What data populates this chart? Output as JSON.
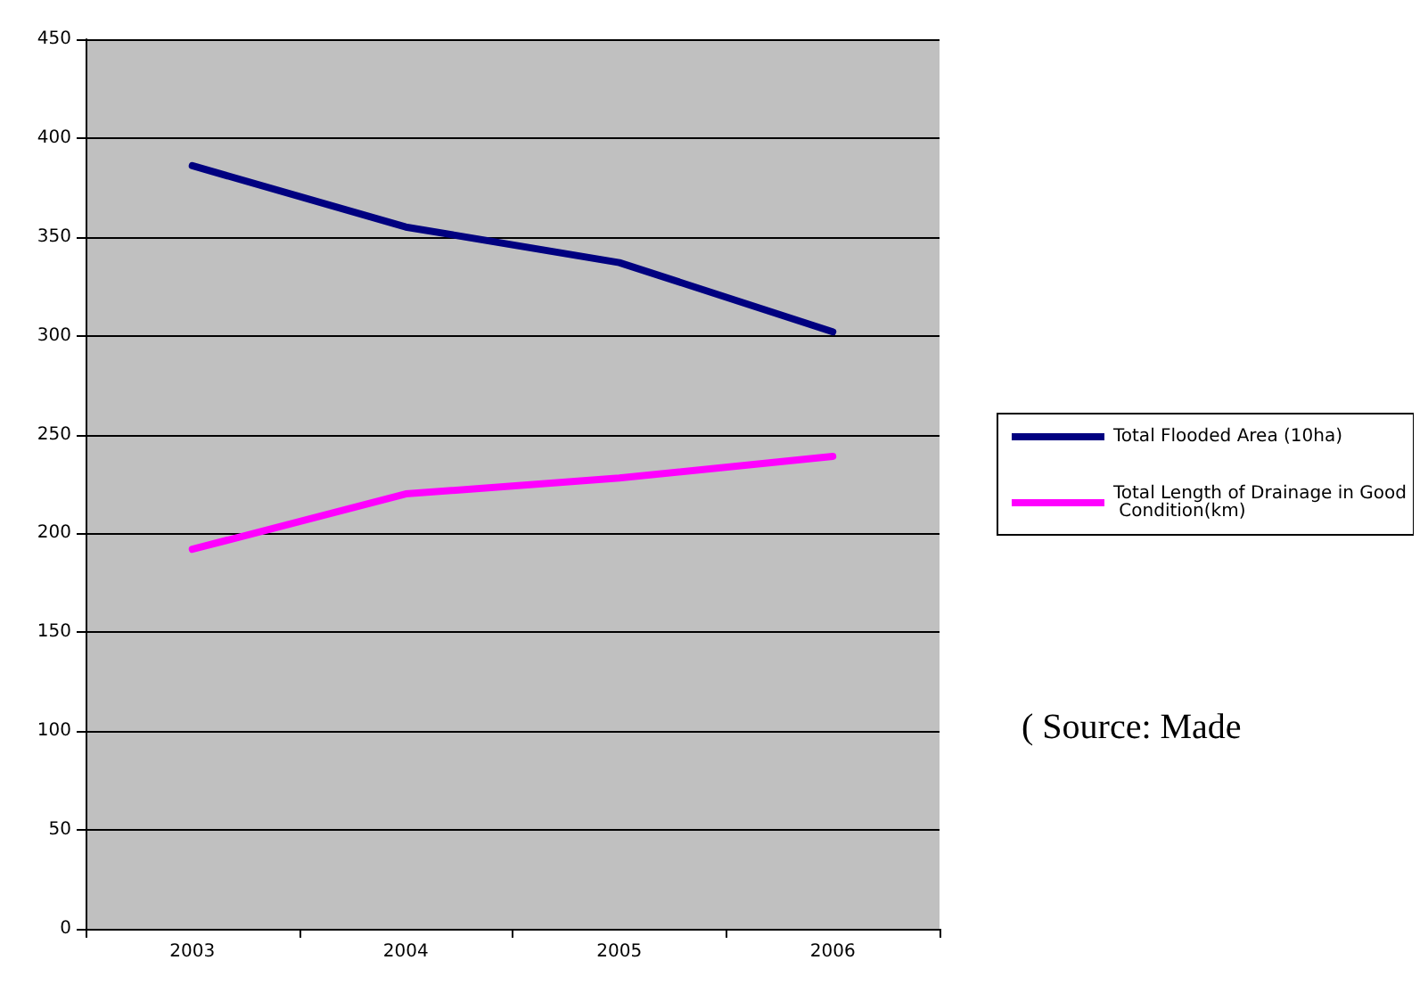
{
  "chart_data": {
    "type": "line",
    "categories": [
      "2003",
      "2004",
      "2005",
      "2006"
    ],
    "series": [
      {
        "name": "Total Flooded Area (10ha)",
        "color": "#000080",
        "values": [
          386,
          355,
          337,
          302
        ]
      },
      {
        "name": "Total Length of Drainage in Good Condition(km)",
        "color": "#ff00ff",
        "values": [
          192,
          220,
          228,
          239
        ]
      }
    ],
    "ylim": [
      0,
      450
    ],
    "yticks": [
      0,
      50,
      100,
      150,
      200,
      250,
      300,
      350,
      400,
      450
    ],
    "grid": "y",
    "legend": "right",
    "marker": "none",
    "line_style": "solid",
    "annotations": [
      "( Source: Made"
    ]
  }
}
